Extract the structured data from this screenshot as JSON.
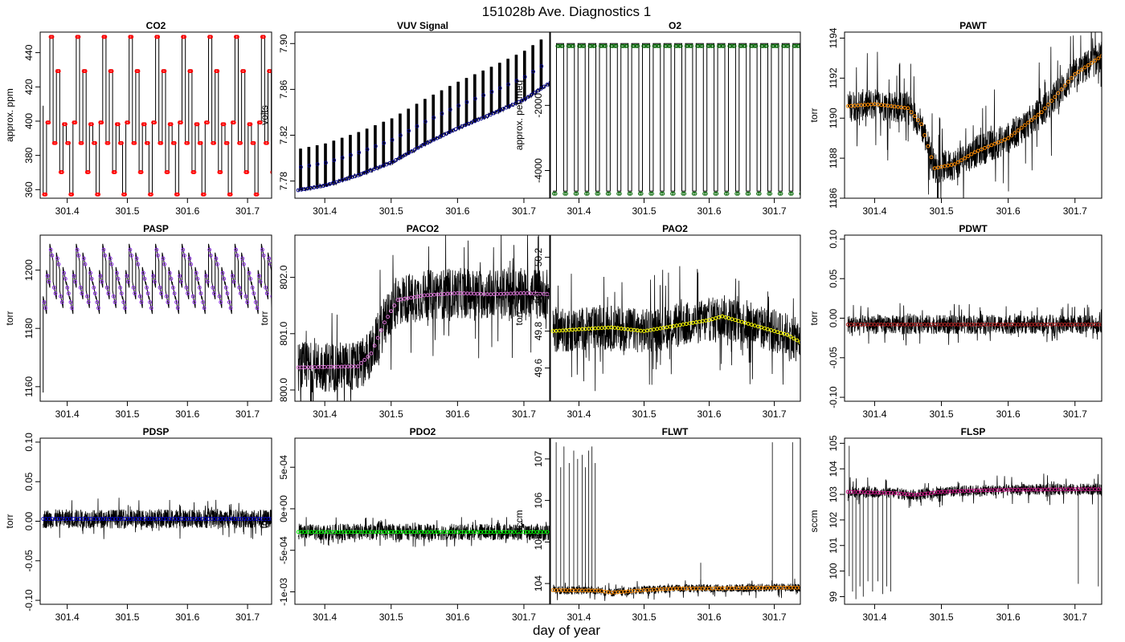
{
  "figure": {
    "title": "151028b   Ave. Diagnostics 1",
    "xlabel": "day of year"
  },
  "chart_data": [
    {
      "type": "line",
      "title": "CO2",
      "xlabel": "",
      "ylabel": "approx. ppm",
      "xlim": [
        301.355,
        301.74
      ],
      "ylim": [
        355,
        452
      ],
      "xticks": [
        301.4,
        301.5,
        301.6,
        301.7
      ],
      "yticks": [
        360,
        380,
        400,
        420,
        440
      ],
      "ytick_labels": [
        "360",
        "380",
        "400",
        "420",
        "440"
      ],
      "marker_color": "#ff0000",
      "generator": "co2",
      "series": [
        {
          "name": "",
          "x": [],
          "values": []
        }
      ],
      "cycle_levels": [
        358,
        400,
        450,
        388,
        430,
        371,
        399,
        388
      ]
    },
    {
      "type": "line",
      "title": "VUV Signal",
      "xlabel": "",
      "ylabel": "volts",
      "xlim": [
        301.355,
        301.74
      ],
      "ylim": [
        7.765,
        7.91
      ],
      "xticks": [
        301.4,
        301.5,
        301.6,
        301.7
      ],
      "yticks": [
        7.78,
        7.82,
        7.86,
        7.9
      ],
      "ytick_labels": [
        "7.78",
        "7.82",
        "7.86",
        "7.90"
      ],
      "marker_color": "#00008b",
      "generator": "vuv",
      "series": [
        {
          "name": "",
          "x": [
            301.36,
            301.4,
            301.45,
            301.5,
            301.55,
            301.6,
            301.65,
            301.7,
            301.74
          ],
          "values": [
            7.772,
            7.776,
            7.785,
            7.796,
            7.812,
            7.826,
            7.838,
            7.851,
            7.866
          ]
        }
      ]
    },
    {
      "type": "line",
      "title": "O2",
      "xlabel": "",
      "ylabel": "approx. per meg",
      "xlim": [
        301.355,
        301.74
      ],
      "ylim": [
        -4850,
        250
      ],
      "xticks": [
        301.4,
        301.5,
        301.6,
        301.7
      ],
      "yticks": [
        -4000,
        -2000
      ],
      "ytick_labels": [
        "-4000",
        "-2000"
      ],
      "marker_color": "#006400",
      "generator": "o2",
      "series": [
        {
          "name": "",
          "x": [],
          "values": []
        }
      ],
      "levels": {
        "high": -100,
        "low": -4630
      }
    },
    {
      "type": "line",
      "title": "PAWT",
      "xlabel": "",
      "ylabel": "torr",
      "xlim": [
        301.355,
        301.74
      ],
      "ylim": [
        1186,
        1194.3
      ],
      "xticks": [
        301.4,
        301.5,
        301.6,
        301.7
      ],
      "yticks": [
        1186,
        1188,
        1190,
        1192,
        1194
      ],
      "ytick_labels": [
        "1186",
        "1188",
        "1190",
        "1192",
        "1194"
      ],
      "marker_color": "#ff8c00",
      "generator": "band",
      "series": [
        {
          "name": "",
          "x": [
            301.36,
            301.4,
            301.45,
            301.47,
            301.49,
            301.52,
            301.55,
            301.6,
            301.65,
            301.7,
            301.74
          ],
          "values": [
            1190.6,
            1190.7,
            1190.5,
            1189.7,
            1187.5,
            1187.7,
            1188.3,
            1189.0,
            1190.3,
            1192.2,
            1193.1
          ]
        }
      ],
      "band": 0.8,
      "spike": 2.0
    },
    {
      "type": "line",
      "title": "PASP",
      "xlabel": "",
      "ylabel": "torr",
      "xlim": [
        301.355,
        301.74
      ],
      "ylim": [
        1155,
        1212
      ],
      "xticks": [
        301.4,
        301.5,
        301.6,
        301.7
      ],
      "yticks": [
        1160,
        1180,
        1200
      ],
      "ytick_labels": [
        "1160",
        "1180",
        "1200"
      ],
      "marker_color": "#8a2be2",
      "generator": "pasp",
      "series": [
        {
          "name": "",
          "x": [],
          "values": []
        }
      ],
      "cycle_levels": [
        1188,
        1197,
        1206,
        1193,
        1203,
        1190,
        1198,
        1193
      ]
    },
    {
      "type": "line",
      "title": "PACO2",
      "xlabel": "",
      "ylabel": "torr",
      "xlim": [
        301.355,
        301.74
      ],
      "ylim": [
        799.8,
        802.75
      ],
      "xticks": [
        301.4,
        301.5,
        301.6,
        301.7
      ],
      "yticks": [
        800,
        801,
        802
      ],
      "ytick_labels": [
        "800.0",
        "801.0",
        "802.0"
      ],
      "marker_color": "#da70d6",
      "generator": "band",
      "series": [
        {
          "name": "",
          "x": [
            301.36,
            301.45,
            301.47,
            301.49,
            301.51,
            301.55,
            301.6,
            301.65,
            301.7,
            301.74
          ],
          "values": [
            800.4,
            800.42,
            800.65,
            801.2,
            801.6,
            801.68,
            801.72,
            801.7,
            801.72,
            801.7
          ]
        }
      ],
      "band": 0.45,
      "spike": 0.7
    },
    {
      "type": "line",
      "title": "PAO2",
      "xlabel": "",
      "ylabel": "torr",
      "xlim": [
        301.355,
        301.74
      ],
      "ylim": [
        49.42,
        50.32
      ],
      "xticks": [
        301.4,
        301.5,
        301.6,
        301.7
      ],
      "yticks": [
        49.6,
        49.8,
        50,
        50.2
      ],
      "ytick_labels": [
        "49.6",
        "49.8",
        "50.0",
        "50.2"
      ],
      "marker_color": "#ffff00",
      "generator": "band",
      "series": [
        {
          "name": "",
          "x": [
            301.36,
            301.4,
            301.45,
            301.5,
            301.55,
            301.6,
            301.62,
            301.65,
            301.7,
            301.72,
            301.74
          ],
          "values": [
            49.8,
            49.81,
            49.82,
            49.8,
            49.83,
            49.86,
            49.88,
            49.85,
            49.8,
            49.78,
            49.74
          ]
        }
      ],
      "band": 0.12,
      "spike": 0.22
    },
    {
      "type": "line",
      "title": "PDWT",
      "xlabel": "",
      "ylabel": "torr",
      "xlim": [
        301.355,
        301.74
      ],
      "ylim": [
        -0.105,
        0.105
      ],
      "xticks": [
        301.4,
        301.5,
        301.6,
        301.7
      ],
      "yticks": [
        -0.1,
        -0.05,
        0,
        0.05,
        0.1
      ],
      "ytick_labels": [
        "-0.10",
        "-0.05",
        "0.00",
        "0.05",
        "0.10"
      ],
      "marker_color": "#b22222",
      "generator": "band",
      "series": [
        {
          "name": "",
          "x": [
            301.36,
            301.74
          ],
          "values": [
            -0.008,
            -0.008
          ]
        }
      ],
      "band": 0.012,
      "spike": 0.015
    },
    {
      "type": "line",
      "title": "PDSP",
      "xlabel": "",
      "ylabel": "torr",
      "xlim": [
        301.355,
        301.74
      ],
      "ylim": [
        -0.105,
        0.105
      ],
      "xticks": [
        301.4,
        301.5,
        301.6,
        301.7
      ],
      "yticks": [
        -0.1,
        -0.05,
        0,
        0.05,
        0.1
      ],
      "ytick_labels": [
        "-0.10",
        "-0.05",
        "0.00",
        "0.05",
        "0.10"
      ],
      "marker_color": "#0000cd",
      "generator": "band",
      "series": [
        {
          "name": "",
          "x": [
            301.36,
            301.74
          ],
          "values": [
            0.003,
            0.003
          ]
        }
      ],
      "band": 0.012,
      "spike": 0.015
    },
    {
      "type": "line",
      "title": "PDO2",
      "xlabel": "",
      "ylabel": "torr",
      "xlim": [
        301.355,
        301.74
      ],
      "ylim": [
        -0.00115,
        0.00085
      ],
      "xticks": [
        301.4,
        301.5,
        301.6,
        301.7
      ],
      "yticks": [
        -0.001,
        -0.0005,
        0,
        0.0005
      ],
      "ytick_labels": [
        "-1e-03",
        "-5e-04",
        "0e+00",
        "5e-04"
      ],
      "marker_color": "#00ff00",
      "generator": "band",
      "series": [
        {
          "name": "",
          "x": [
            301.36,
            301.74
          ],
          "values": [
            -0.00028,
            -0.00028
          ]
        }
      ],
      "band": 0.0001,
      "spike": 8e-05
    },
    {
      "type": "line",
      "title": "FLWT",
      "xlabel": "",
      "ylabel": "sccm",
      "xlim": [
        301.355,
        301.74
      ],
      "ylim": [
        103.5,
        107.5
      ],
      "xticks": [
        301.4,
        301.5,
        301.6,
        301.7
      ],
      "yticks": [
        104,
        105,
        106,
        107
      ],
      "ytick_labels": [
        "104",
        "105",
        "106",
        "107"
      ],
      "marker_color": "#ff8c00",
      "generator": "band",
      "series": [
        {
          "name": "",
          "x": [
            301.36,
            301.43,
            301.45,
            301.5,
            301.55,
            301.6,
            301.7,
            301.74
          ],
          "values": [
            103.84,
            103.83,
            103.78,
            103.84,
            103.88,
            103.88,
            103.9,
            103.9
          ]
        }
      ],
      "band": 0.1,
      "spike": 0.15,
      "spikes_up": [
        [
          301.365,
          107.4
        ],
        [
          301.372,
          106.8
        ],
        [
          301.377,
          107.3
        ],
        [
          301.385,
          106.9
        ],
        [
          301.392,
          107.2
        ],
        [
          301.398,
          107.0
        ],
        [
          301.405,
          107.1
        ],
        [
          301.41,
          106.8
        ],
        [
          301.415,
          107.2
        ],
        [
          301.42,
          107.3
        ],
        [
          301.425,
          106.9
        ],
        [
          301.587,
          104.5
        ],
        [
          301.697,
          107.4
        ],
        [
          301.728,
          107.4
        ]
      ]
    },
    {
      "type": "line",
      "title": "FLSP",
      "xlabel": "",
      "ylabel": "sccm",
      "xlim": [
        301.355,
        301.74
      ],
      "ylim": [
        98.7,
        105.2
      ],
      "xticks": [
        301.4,
        301.5,
        301.6,
        301.7
      ],
      "yticks": [
        99,
        100,
        101,
        102,
        103,
        104,
        105
      ],
      "ytick_labels": [
        "99",
        "100",
        "101",
        "102",
        "103",
        "104",
        "105"
      ],
      "marker_color": "#c71585",
      "generator": "band",
      "series": [
        {
          "name": "",
          "x": [
            301.36,
            301.43,
            301.46,
            301.5,
            301.55,
            301.6,
            301.7,
            301.74
          ],
          "values": [
            103.1,
            103.05,
            102.98,
            103.1,
            103.15,
            103.18,
            103.2,
            103.2
          ]
        }
      ],
      "band": 0.22,
      "spike": 0.4,
      "spikes_down": [
        [
          301.362,
          99.8
        ],
        [
          301.367,
          99.2
        ],
        [
          301.372,
          98.9
        ],
        [
          301.378,
          99.4
        ],
        [
          301.383,
          99.0
        ],
        [
          301.39,
          99.6
        ],
        [
          301.397,
          99.2
        ],
        [
          301.405,
          99.6
        ],
        [
          301.412,
          99.1
        ],
        [
          301.418,
          99.4
        ],
        [
          301.424,
          99.2
        ],
        [
          301.705,
          99.5
        ],
        [
          301.735,
          99.4
        ]
      ],
      "spikes_up": [
        [
          301.362,
          104.9
        ]
      ]
    }
  ]
}
